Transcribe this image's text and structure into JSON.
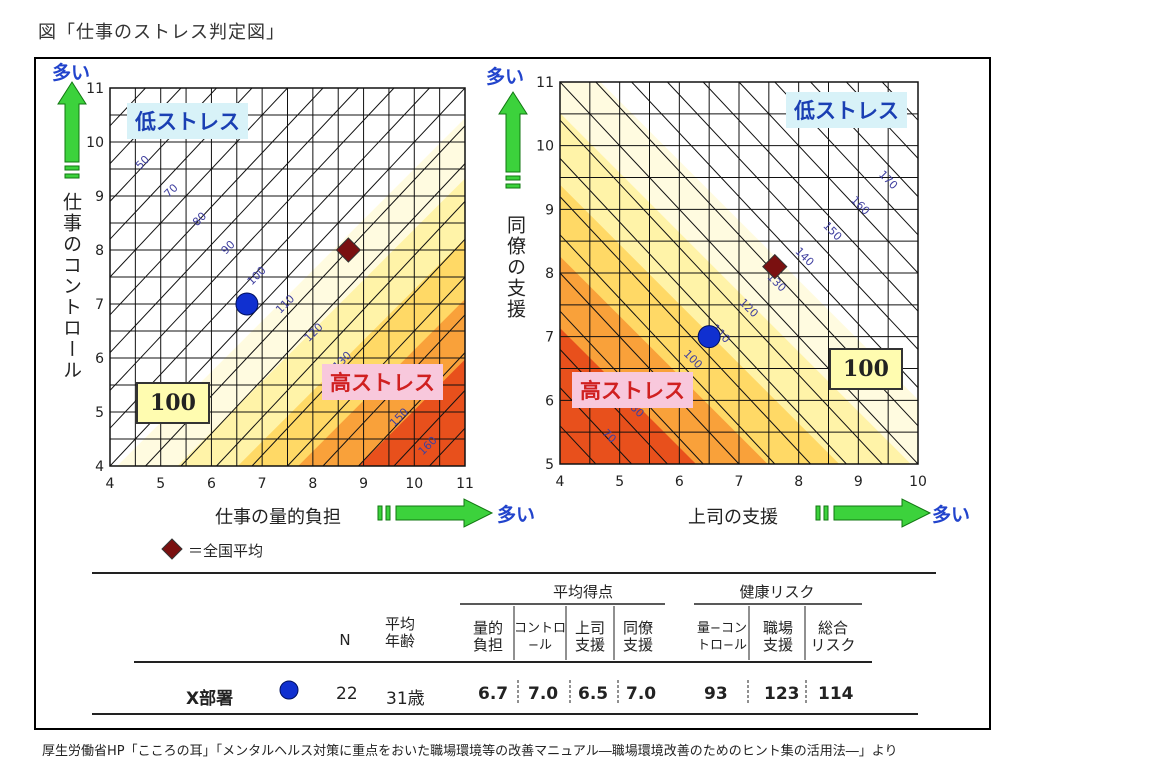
{
  "page_title": "図「仕事のストレス判定図」",
  "source_note": "厚生労働省HP「こころの耳」「メンタルヘルス対策に重点をおいた職場環境等の改善マニュアル―職場環境改善のためのヒント集の活用法―」より",
  "colors": {
    "grid": "#111111",
    "zone1": "#fffbe0",
    "zone2": "#fff3a8",
    "zone3": "#ffd966",
    "zone4": "#f9a13a",
    "zone5": "#e8501c",
    "national": "#7a1010",
    "dept": "#1030d0",
    "arrow": "#3cd23c",
    "blue_label": "#2244cc"
  },
  "chart_data": [
    {
      "type": "scatter",
      "xlabel": "仕事の量的負担",
      "ylabel": "仕事のコントロール",
      "xlim": [
        4,
        11
      ],
      "ylim": [
        4,
        11
      ],
      "x_ticks": [
        "4",
        "5",
        "6",
        "7",
        "8",
        "9",
        "10",
        "11"
      ],
      "y_ticks": [
        "4",
        "5",
        "6",
        "7",
        "8",
        "9",
        "10",
        "11"
      ],
      "more_label_x": "多い",
      "more_label_y": "多い",
      "low_label": "低ストレス",
      "high_label": "高ストレス",
      "box_label": "100",
      "contour_labels": [
        "50",
        "70",
        "80",
        "90",
        "100",
        "110",
        "120",
        "130",
        "140",
        "150",
        "160"
      ],
      "points": [
        {
          "series": "全国平均",
          "x": 8.7,
          "y": 8.0,
          "marker": "diamond"
        },
        {
          "series": "X部署",
          "x": 6.7,
          "y": 7.0,
          "marker": "circle"
        }
      ]
    },
    {
      "type": "scatter",
      "xlabel": "上司の支援",
      "ylabel": "同僚の支援",
      "xlim": [
        4,
        10
      ],
      "ylim": [
        5,
        11
      ],
      "x_ticks": [
        "4",
        "5",
        "6",
        "7",
        "8",
        "9",
        "10"
      ],
      "y_ticks": [
        "5",
        "6",
        "7",
        "8",
        "9",
        "10",
        "11"
      ],
      "more_label_x": "多い",
      "more_label_y": "多い",
      "low_label": "低ストレス",
      "high_label": "高ストレス",
      "box_label": "100",
      "contour_labels": [
        "70",
        "80",
        "90",
        "100",
        "110",
        "120",
        "130",
        "140",
        "150",
        "160",
        "170"
      ],
      "points": [
        {
          "series": "全国平均",
          "x": 7.6,
          "y": 8.1,
          "marker": "diamond"
        },
        {
          "series": "X部署",
          "x": 6.5,
          "y": 7.0,
          "marker": "circle"
        }
      ]
    }
  ],
  "legend": {
    "national_label": "＝全国平均"
  },
  "table": {
    "header_avg": "平均得点",
    "header_risk": "健康リスク",
    "col_n": "N",
    "col_age": "平均\n年齢",
    "cols_avg": [
      "量的\n負担",
      "コントロ\n−ル",
      "上司\n支援",
      "同僚\n支援"
    ],
    "cols_risk": [
      "量−コン\nトロ−ル",
      "職場\n支援",
      "総合\nリスク"
    ],
    "row": {
      "name": "X部署",
      "n": "22",
      "age": "31歳",
      "values": [
        "6.7",
        "7.0",
        "6.5",
        "7.0"
      ],
      "risks": [
        "93",
        "123",
        "114"
      ]
    }
  }
}
